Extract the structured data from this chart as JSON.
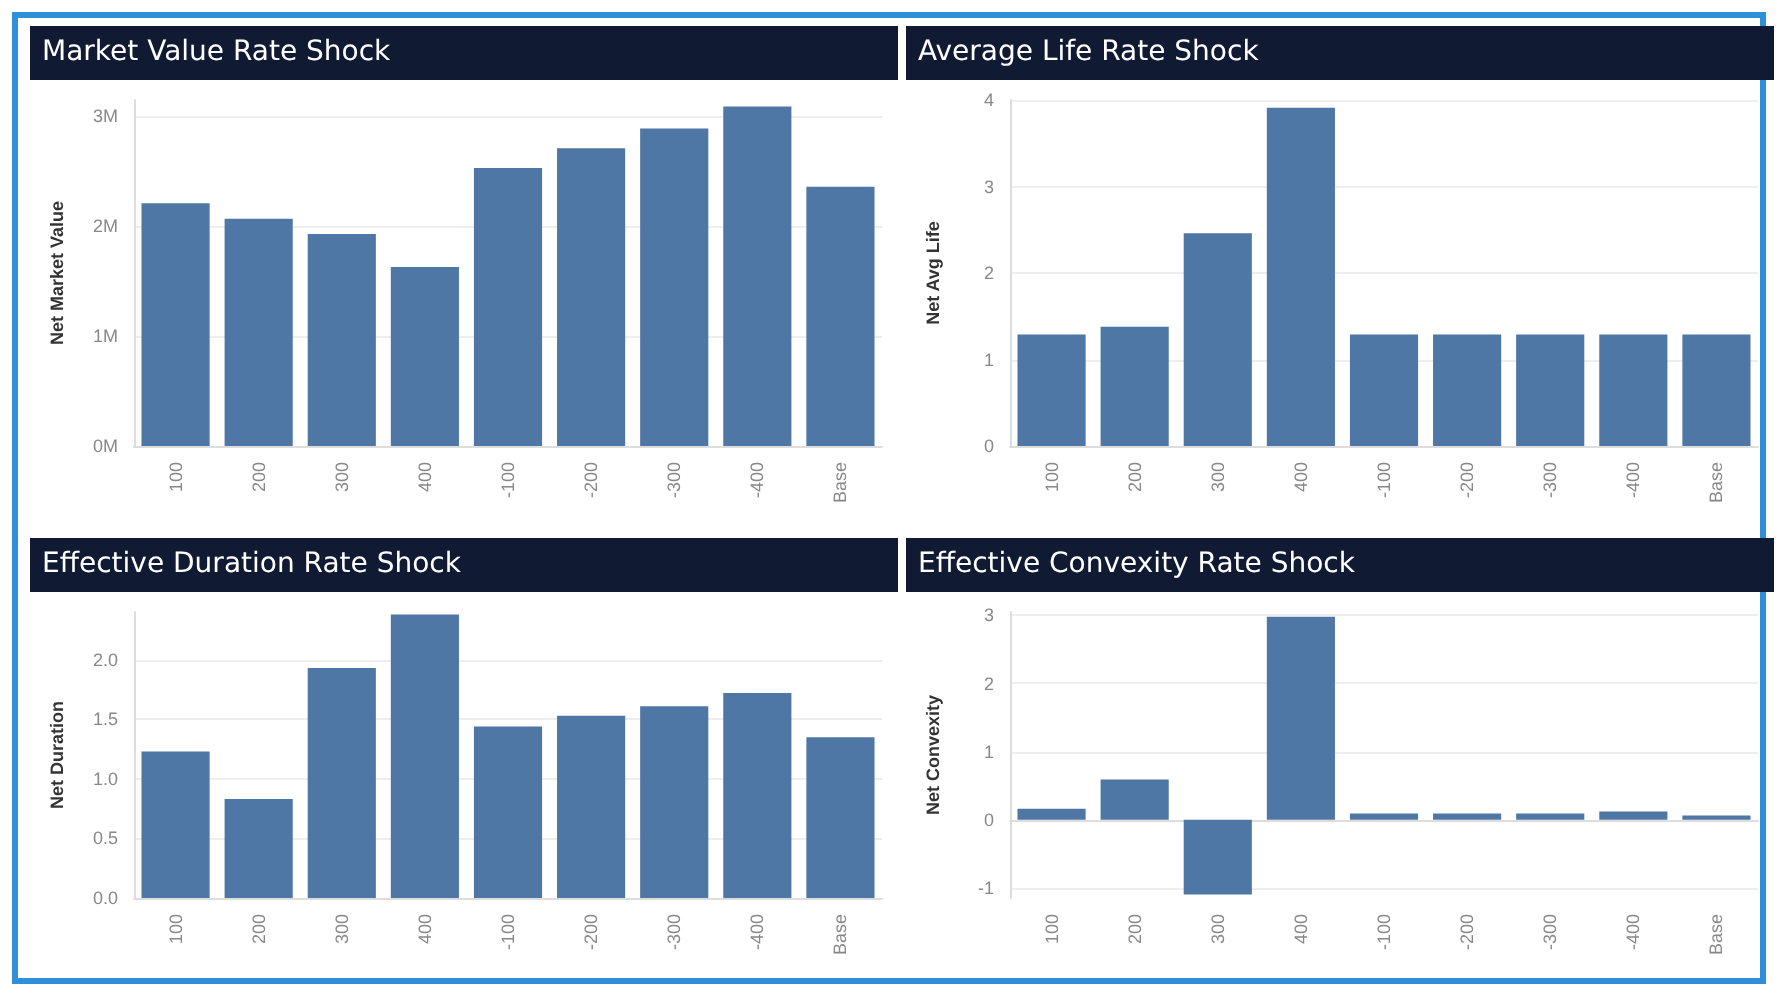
{
  "chart_data": [
    {
      "type": "bar",
      "title": "Market Value Rate Shock",
      "ylabel": "Net Market Value",
      "categories": [
        "100",
        "200",
        "300",
        "400",
        "-100",
        "-200",
        "-300",
        "-400",
        "Base"
      ],
      "values": [
        2.21,
        2.07,
        1.93,
        1.63,
        2.53,
        2.71,
        2.89,
        3.09,
        2.36
      ],
      "color": "#4e77a5",
      "ylim": [
        0,
        3.15
      ],
      "yticks": [
        {
          "value": 0,
          "label": "0M"
        },
        {
          "value": 1,
          "label": "1M"
        },
        {
          "value": 2,
          "label": "2M"
        },
        {
          "value": 3,
          "label": "3M"
        }
      ],
      "grid": "y"
    },
    {
      "type": "bar",
      "title": "Average Life Rate Shock",
      "ylabel": "Net Avg Life",
      "categories": [
        "100",
        "200",
        "300",
        "400",
        "-100",
        "-200",
        "-300",
        "-400",
        "Base"
      ],
      "values": [
        1.29,
        1.38,
        2.46,
        3.91,
        1.29,
        1.29,
        1.29,
        1.29,
        1.29
      ],
      "color": "#4e77a5",
      "ylim": [
        0,
        4
      ],
      "yticks": [
        0,
        1,
        2,
        3,
        4
      ],
      "grid": "y"
    },
    {
      "type": "bar",
      "title": "Effective Duration Rate Shock",
      "ylabel": "Net Duration",
      "categories": [
        "100",
        "200",
        "300",
        "400",
        "-100",
        "-200",
        "-300",
        "-400",
        "Base"
      ],
      "values": [
        1.23,
        0.83,
        1.93,
        2.38,
        1.44,
        1.53,
        1.61,
        1.72,
        1.35
      ],
      "color": "#4e77a5",
      "ylim": [
        0,
        2.4
      ],
      "yticks": [
        {
          "value": 0,
          "label": "0.0"
        },
        {
          "value": 0.5,
          "label": "0.5"
        },
        {
          "value": 1,
          "label": "1.0"
        },
        {
          "value": 1.5,
          "label": "1.5"
        },
        {
          "value": 2,
          "label": "2.0"
        }
      ],
      "grid": "y"
    },
    {
      "type": "bar",
      "title": "Effective Convexity Rate Shock",
      "ylabel": "Net Convexity",
      "categories": [
        "100",
        "200",
        "300",
        "400",
        "-100",
        "-200",
        "-300",
        "-400",
        "Base"
      ],
      "values": [
        0.16,
        0.59,
        -1.1,
        2.98,
        0.09,
        0.09,
        0.09,
        0.12,
        0.06
      ],
      "color": "#4e77a5",
      "ylim": [
        -1.15,
        3.05
      ],
      "yticks": [
        -1,
        0,
        1,
        2,
        3
      ],
      "grid": "y"
    }
  ]
}
